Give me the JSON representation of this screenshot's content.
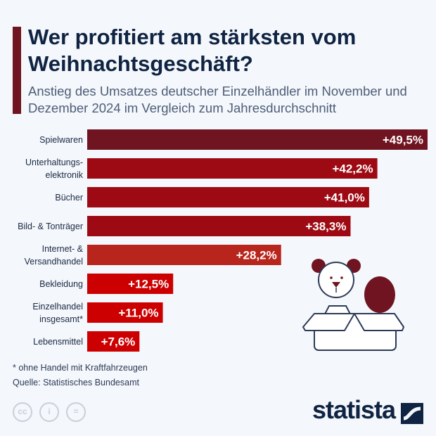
{
  "title": "Wer profitiert am stärksten vom Weihnachtsgeschäft?",
  "subtitle": "Anstieg des Umsatzes deutscher Einzelhändler im November und Dezember 2024 im Vergleich zum Jahresdurchschnitt",
  "footnote": "* ohne Handel mit Kraftfahrzeugen",
  "source": "Quelle: Statistisches Bundesamt",
  "brand": "statista",
  "license_icons": [
    "cc-icon",
    "attribution-icon",
    "no-derivatives-icon"
  ],
  "chart_data": {
    "type": "bar",
    "orientation": "horizontal",
    "categories": [
      [
        "Spielwaren"
      ],
      [
        "Unterhaltungs-",
        "elektronik"
      ],
      [
        "Bücher"
      ],
      [
        "Bild- & Tonträger"
      ],
      [
        "Internet- &",
        "Versandhandel"
      ],
      [
        "Bekleidung"
      ],
      [
        "Einzelhandel",
        "insgesamt*"
      ],
      [
        "Lebensmittel"
      ]
    ],
    "values": [
      49.5,
      42.2,
      41.0,
      38.3,
      28.2,
      12.5,
      11.0,
      7.6
    ],
    "value_labels": [
      "+49,5%",
      "+42,2%",
      "+41,0%",
      "+38,3%",
      "+28,2%",
      "+12,5%",
      "+11,0%",
      "+7,6%"
    ],
    "colors": [
      "#6f1420",
      "#9e0a13",
      "#9e0a13",
      "#9e0a13",
      "#b8251d",
      "#cc0000",
      "#cc0000",
      "#cc0000"
    ],
    "unit": "%",
    "grid": false,
    "xlim": [
      0,
      49.5
    ]
  }
}
